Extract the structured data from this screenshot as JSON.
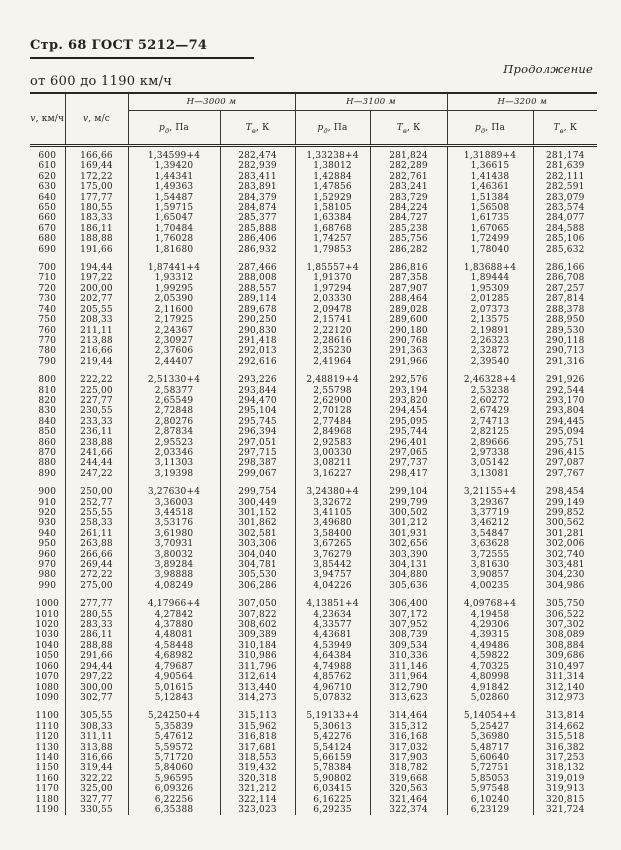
{
  "page": {
    "header_left": "Стр. 68 ГОСТ 5212—74",
    "continuation": "Продолжение",
    "range_title": "от 600 до 1190 км/ч"
  },
  "table": {
    "v_kmh": {
      "sym": "v",
      "unit": ", км/ч"
    },
    "v_ms": {
      "sym": "v",
      "unit": ", м/с"
    },
    "h_groups": [
      "Н—3000 м",
      "Н—3100 м",
      "Н—3200 м"
    ],
    "p_label": {
      "sym": "р",
      "sub": "д",
      "unit": ", Па"
    },
    "t_label": {
      "sym": "Т",
      "sub": "в",
      "unit": ", К"
    },
    "groups": [
      [
        [
          "600",
          "166,66",
          "1,34599+4",
          "282,474",
          "1,33238+4",
          "281,824",
          "1,31889+4",
          "281,174"
        ],
        [
          "610",
          "169,44",
          "1,39420",
          "282,939",
          "1,38012",
          "282,289",
          "1,36615",
          "281,639"
        ],
        [
          "620",
          "172,22",
          "1,44341",
          "283,411",
          "1,42884",
          "282,761",
          "1,41438",
          "282,111"
        ],
        [
          "630",
          "175,00",
          "1,49363",
          "283,891",
          "1,47856",
          "283,241",
          "1,46361",
          "282,591"
        ],
        [
          "640",
          "177,77",
          "1,54487",
          "284,379",
          "1,52929",
          "283,729",
          "1,51384",
          "283,079"
        ],
        [
          "650",
          "180,55",
          "1,59715",
          "284,874",
          "1,58105",
          "284,224",
          "1,56508",
          "283,574"
        ],
        [
          "660",
          "183,33",
          "1,65047",
          "285,377",
          "1,63384",
          "284,727",
          "1,61735",
          "284,077"
        ],
        [
          "670",
          "186,11",
          "1,70484",
          "285,888",
          "1,68768",
          "285,238",
          "1,67065",
          "284,588"
        ],
        [
          "680",
          "188,88",
          "1,76028",
          "286,406",
          "1,74257",
          "285,756",
          "1,72499",
          "285,106"
        ],
        [
          "690",
          "191,66",
          "1,81680",
          "286,932",
          "1,79853",
          "286,282",
          "1,78040",
          "285,632"
        ]
      ],
      [
        [
          "700",
          "194,44",
          "1,87441+4",
          "287,466",
          "1,85557+4",
          "286,816",
          "1,83688+4",
          "286,166"
        ],
        [
          "710",
          "197,22",
          "1,93312",
          "288,008",
          "1,91370",
          "287,358",
          "1,89444",
          "286,708"
        ],
        [
          "720",
          "200,00",
          "1,99295",
          "288,557",
          "1,97294",
          "287,907",
          "1,95309",
          "287,257"
        ],
        [
          "730",
          "202,77",
          "2,05390",
          "289,114",
          "2,03330",
          "288,464",
          "2,01285",
          "287,814"
        ],
        [
          "740",
          "205,55",
          "2,11600",
          "289,678",
          "2,09478",
          "289,028",
          "2,07373",
          "288,378"
        ],
        [
          "750",
          "208,33",
          "2,17925",
          "290,250",
          "2,15741",
          "289,600",
          "2,13575",
          "288,950"
        ],
        [
          "760",
          "211,11",
          "2,24367",
          "290,830",
          "2,22120",
          "290,180",
          "2,19891",
          "289,530"
        ],
        [
          "770",
          "213,88",
          "2,30927",
          "291,418",
          "2,28616",
          "290,768",
          "2,26323",
          "290,118"
        ],
        [
          "780",
          "216,66",
          "2,37606",
          "292,013",
          "2,35230",
          "291,363",
          "2,32872",
          "290,713"
        ],
        [
          "790",
          "219,44",
          "2,44407",
          "292,616",
          "2,41964",
          "291,966",
          "2,39540",
          "291,316"
        ]
      ],
      [
        [
          "800",
          "222,22",
          "2,51330+4",
          "293,226",
          "2,48819+4",
          "292,576",
          "2,46328+4",
          "291,926"
        ],
        [
          "810",
          "225,00",
          "2,58377",
          "293,844",
          "2,55798",
          "293,194",
          "2,53238",
          "292,544"
        ],
        [
          "820",
          "227,77",
          "2,65549",
          "294,470",
          "2,62900",
          "293,820",
          "2,60272",
          "293,170"
        ],
        [
          "830",
          "230,55",
          "2,72848",
          "295,104",
          "2,70128",
          "294,454",
          "2,67429",
          "293,804"
        ],
        [
          "840",
          "233,33",
          "2,80276",
          "295,745",
          "2,77484",
          "295,095",
          "2,74713",
          "294,445"
        ],
        [
          "850",
          "236,11",
          "2,87834",
          "296,394",
          "2,84968",
          "295,744",
          "2,82125",
          "295,094"
        ],
        [
          "860",
          "238,88",
          "2,95523",
          "297,051",
          "2,92583",
          "296,401",
          "2,89666",
          "295,751"
        ],
        [
          "870",
          "241,66",
          "2,03346",
          "297,715",
          "3,00330",
          "297,065",
          "2,97338",
          "296,415"
        ],
        [
          "880",
          "244,44",
          "3,11303",
          "298,387",
          "3,08211",
          "297,737",
          "3,05142",
          "297,087"
        ],
        [
          "890",
          "247,22",
          "3,19398",
          "299,067",
          "3,16227",
          "298,417",
          "3,13081",
          "297,767"
        ]
      ],
      [
        [
          "900",
          "250,00",
          "3,27630+4",
          "299,754",
          "3,24380+4",
          "299,104",
          "3,21155+4",
          "298,454"
        ],
        [
          "910",
          "252,77",
          "3,36003",
          "300,449",
          "3,32672",
          "299,799",
          "3,29367",
          "299,149"
        ],
        [
          "920",
          "255,55",
          "3,44518",
          "301,152",
          "3,41105",
          "300,502",
          "3,37719",
          "299,852"
        ],
        [
          "930",
          "258,33",
          "3,53176",
          "301,862",
          "3,49680",
          "301,212",
          "3,46212",
          "300,562"
        ],
        [
          "940",
          "261,11",
          "3,61980",
          "302,581",
          "3,58400",
          "301,931",
          "3,54847",
          "301,281"
        ],
        [
          "950",
          "263,88",
          "3,70931",
          "303,306",
          "3,67265",
          "302,656",
          "3,63628",
          "302,006"
        ],
        [
          "960",
          "266,66",
          "3,80032",
          "304,040",
          "3,76279",
          "303,390",
          "3,72555",
          "302,740"
        ],
        [
          "970",
          "269,44",
          "3,89284",
          "304,781",
          "3,85442",
          "304,131",
          "3,81630",
          "303,481"
        ],
        [
          "980",
          "272,22",
          "3,98888",
          "305,530",
          "3,94757",
          "304,880",
          "3,90857",
          "304,230"
        ],
        [
          "990",
          "275,00",
          "4,08249",
          "306,286",
          "4,04226",
          "305,636",
          "4,00235",
          "304,986"
        ]
      ],
      [
        [
          "1000",
          "277,77",
          "4,17966+4",
          "307,050",
          "4,13851+4",
          "306,400",
          "4,09768+4",
          "305,750"
        ],
        [
          "1010",
          "280,55",
          "4,27842",
          "307,822",
          "4,23634",
          "307,172",
          "4,19458",
          "306,522"
        ],
        [
          "1020",
          "283,33",
          "4,37880",
          "308,602",
          "4,33577",
          "307,952",
          "4,29306",
          "307,302"
        ],
        [
          "1030",
          "286,11",
          "4,48081",
          "309,389",
          "4,43681",
          "308,739",
          "4,39315",
          "308,089"
        ],
        [
          "1040",
          "288,88",
          "4,58448",
          "310,184",
          "4,53949",
          "309,534",
          "4,49486",
          "308,884"
        ],
        [
          "1050",
          "291,66",
          "4,68982",
          "310,986",
          "4,64384",
          "310,336",
          "4,59822",
          "309,686"
        ],
        [
          "1060",
          "294,44",
          "4,79687",
          "311,796",
          "4,74988",
          "311,146",
          "4,70325",
          "310,497"
        ],
        [
          "1070",
          "297,22",
          "4,90564",
          "312,614",
          "4,85762",
          "311,964",
          "4,80998",
          "311,314"
        ],
        [
          "1080",
          "300,00",
          "5,01615",
          "313,440",
          "4,96710",
          "312,790",
          "4,91842",
          "312,140"
        ],
        [
          "1090",
          "302,77",
          "5,12843",
          "314,273",
          "5,07832",
          "313,623",
          "5,02860",
          "312,973"
        ]
      ],
      [
        [
          "1100",
          "305,55",
          "5,24250+4",
          "315,113",
          "5,19133+4",
          "314,464",
          "5,14054+4",
          "313,814"
        ],
        [
          "1110",
          "308,33",
          "5,35839",
          "315,962",
          "5,30613",
          "315,312",
          "5,25427",
          "314,662"
        ],
        [
          "1120",
          "311,11",
          "5,47612",
          "316,818",
          "5,42276",
          "316,168",
          "5,36980",
          "315,518"
        ],
        [
          "1130",
          "313,88",
          "5,59572",
          "317,681",
          "5,54124",
          "317,032",
          "5,48717",
          "316,382"
        ],
        [
          "1140",
          "316,66",
          "5,71720",
          "318,553",
          "5,66159",
          "317,903",
          "5,60640",
          "317,253"
        ],
        [
          "1150",
          "319,44",
          "5,84060",
          "319,432",
          "5,78384",
          "318,782",
          "5,72751",
          "318,132"
        ],
        [
          "1160",
          "322,22",
          "5,96595",
          "320,318",
          "5,90802",
          "319,668",
          "5,85053",
          "319,019"
        ],
        [
          "1170",
          "325,00",
          "6,09326",
          "321,212",
          "6,03415",
          "320,563",
          "5,97548",
          "319,913"
        ],
        [
          "1180",
          "327,77",
          "6,22256",
          "322,114",
          "6,16225",
          "321,464",
          "6,10240",
          "320,815"
        ],
        [
          "1190",
          "330,55",
          "6,35388",
          "323,023",
          "6,29235",
          "322,374",
          "6,23129",
          "321,724"
        ]
      ]
    ]
  }
}
